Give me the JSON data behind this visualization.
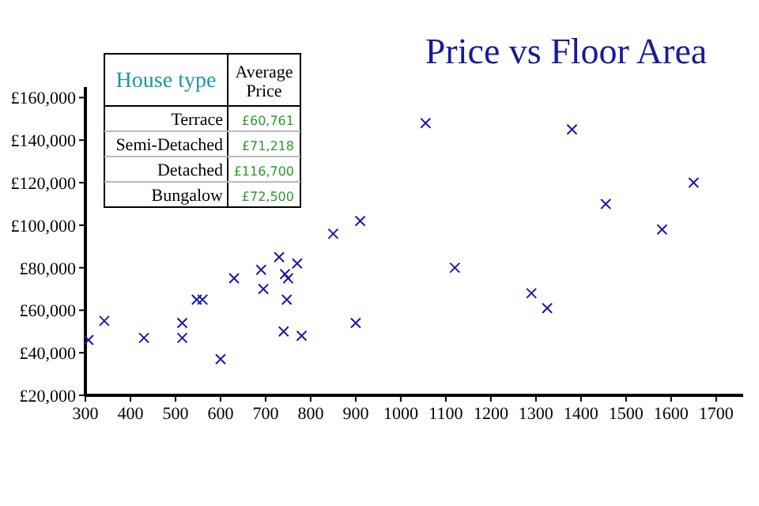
{
  "chart_data": {
    "type": "scatter",
    "title": "Price vs Floor Area",
    "marker": "cross",
    "color": "#1a1aa6",
    "x": [
      307,
      342,
      430,
      515,
      515,
      547,
      560,
      600,
      630,
      690,
      695,
      730,
      743,
      750,
      747,
      740,
      770,
      780,
      850,
      900,
      910,
      1055,
      1120,
      1290,
      1325,
      1380,
      1455,
      1580,
      1650
    ],
    "values": [
      46000,
      55000,
      47000,
      54000,
      47000,
      65000,
      65000,
      37000,
      75000,
      79000,
      70000,
      85000,
      77000,
      75000,
      65000,
      50000,
      82000,
      48000,
      96000,
      54000,
      102000,
      148000,
      80000,
      68000,
      61000,
      145000,
      110000,
      98000,
      120000
    ],
    "xlim": [
      300,
      1760
    ],
    "xticks": [
      300,
      400,
      500,
      600,
      700,
      800,
      900,
      1000,
      1100,
      1200,
      1300,
      1400,
      1500,
      1600,
      1700
    ],
    "ylim": [
      20000,
      165000
    ],
    "yticks": [
      {
        "value": 20000,
        "label": "£20,000"
      },
      {
        "value": 40000,
        "label": "£40,000"
      },
      {
        "value": 60000,
        "label": "£60,000"
      },
      {
        "value": 80000,
        "label": "£80,000"
      },
      {
        "value": 100000,
        "label": "£100,000"
      },
      {
        "value": 120000,
        "label": "£120,000"
      },
      {
        "value": 140000,
        "label": "£140,000"
      },
      {
        "value": 160000,
        "label": "£160,000"
      }
    ],
    "annotations": [
      "House type",
      "Average Price",
      "Terrace",
      "£60,761",
      "Semi-Detached",
      "£71,218",
      "Detached",
      "£116,700",
      "Bungalow",
      "£72,500"
    ]
  }
}
